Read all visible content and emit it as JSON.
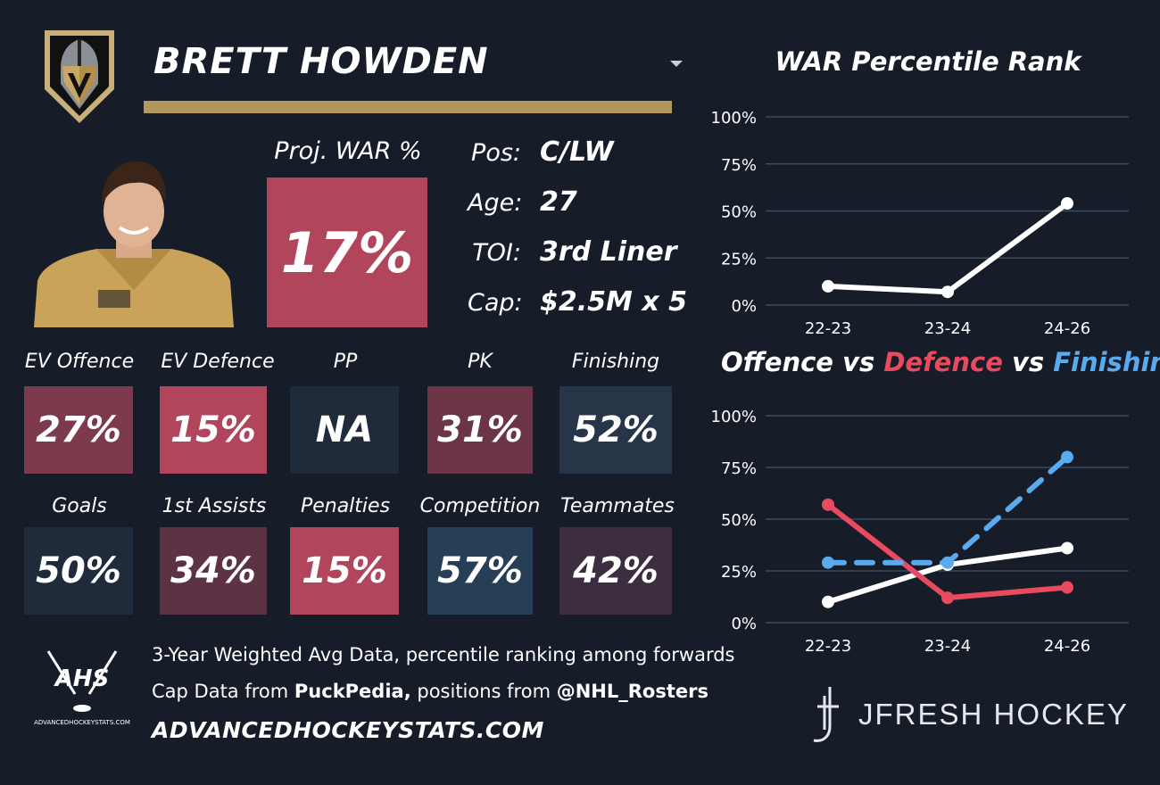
{
  "player": {
    "name": "BRETT HOWDEN",
    "proj_war_label": "Proj. WAR %",
    "proj_war_value": "17%",
    "info": [
      {
        "key": "Pos:",
        "value": "C/LW"
      },
      {
        "key": "Age:",
        "value": "27"
      },
      {
        "key": "TOI:",
        "value": "3rd Liner"
      },
      {
        "key": "Cap:",
        "value": "$2.5M x 5"
      }
    ]
  },
  "stats_row1": [
    {
      "label": "EV Offence",
      "value": "27%",
      "color": "#7d3a4c"
    },
    {
      "label": "EV Defence",
      "value": "15%",
      "color": "#b0455c"
    },
    {
      "label": "PP",
      "value": "NA",
      "color": "#1f2b3b"
    },
    {
      "label": "PK",
      "value": "31%",
      "color": "#6b3547"
    },
    {
      "label": "Finishing",
      "value": "52%",
      "color": "#263648"
    }
  ],
  "stats_row2": [
    {
      "label": "Goals",
      "value": "50%",
      "color": "#1f2b3b"
    },
    {
      "label": "1st Assists",
      "value": "34%",
      "color": "#5d3244"
    },
    {
      "label": "Penalties",
      "value": "15%",
      "color": "#b0455c"
    },
    {
      "label": "Competition",
      "value": "57%",
      "color": "#263f57"
    },
    {
      "label": "Teammates",
      "value": "42%",
      "color": "#3d2d40"
    }
  ],
  "footer": {
    "line1": "3-Year Weighted Avg Data, percentile ranking among forwards",
    "line2_prefix": "Cap Data from ",
    "line2_bold1": "PuckPedia,",
    "line2_mid": " positions from ",
    "line2_bold2": "@NHL_Rosters",
    "site": "ADVANCEDHOCKEYSTATS.COM",
    "ahs_logo_text": "AHS",
    "ahs_logo_small": "ADVANCEDHOCKEYSTATS.COM",
    "brand": "JFRESH HOCKEY"
  },
  "chart1_title": "WAR Percentile Rank",
  "chart2_title": {
    "part1": "Offence",
    "vs1": " vs ",
    "part2": "Defence",
    "vs2": " vs ",
    "part3": "Finishing",
    "color_offence": "#ffffff",
    "color_defence": "#e84a5f",
    "color_finishing": "#5aaaf0"
  },
  "chart_data": [
    {
      "type": "line",
      "title": "WAR Percentile Rank",
      "categories": [
        "22-23",
        "23-24",
        "24-26"
      ],
      "yticks": [
        "100%",
        "75%",
        "50%",
        "25%",
        "0%"
      ],
      "ylim": [
        0,
        100
      ],
      "grid": true,
      "series": [
        {
          "values": [
            10,
            7,
            54
          ],
          "color": "#ffffff"
        }
      ]
    },
    {
      "type": "line",
      "title": "Offence vs Defence vs Finishing",
      "categories": [
        "22-23",
        "23-24",
        "24-26"
      ],
      "yticks": [
        "100%",
        "75%",
        "50%",
        "25%",
        "0%"
      ],
      "ylim": [
        0,
        100
      ],
      "grid": true,
      "series": [
        {
          "name": "Offence",
          "values": [
            10,
            28,
            36
          ],
          "color": "#ffffff",
          "dashed": false
        },
        {
          "name": "Defence",
          "values": [
            57,
            12,
            17
          ],
          "color": "#e84a5f",
          "dashed": false
        },
        {
          "name": "Finishing",
          "values": [
            29,
            29,
            80
          ],
          "color": "#5aaaf0",
          "dashed": true
        }
      ]
    }
  ]
}
